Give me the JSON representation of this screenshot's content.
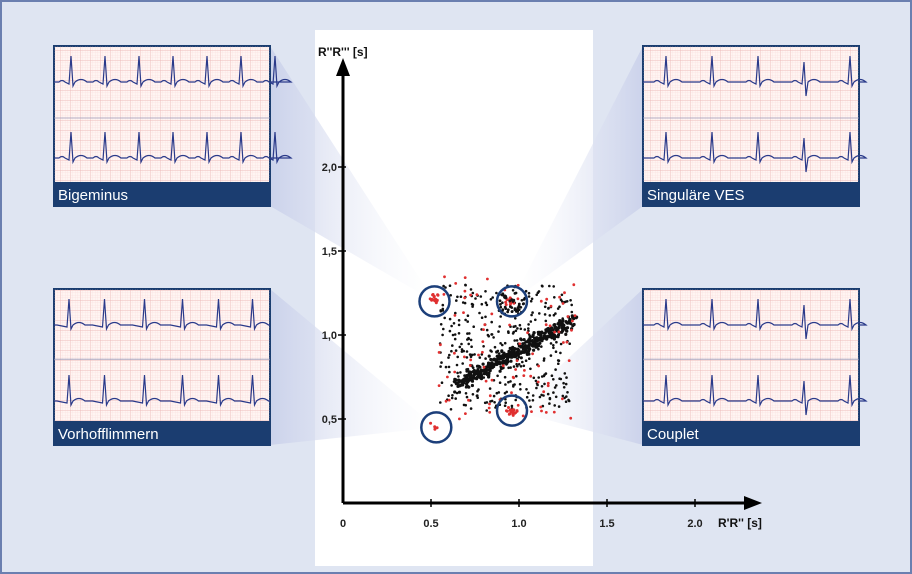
{
  "chart_data": {
    "type": "scatter",
    "xlabel": "R'R'' [s]",
    "ylabel": "R''R''' [s]",
    "xlim": [
      0,
      2.2
    ],
    "ylim": [
      0,
      2.3
    ],
    "x_ticks": [
      {
        "value": 0,
        "label": "0"
      },
      {
        "value": 0.5,
        "label": "0.5"
      },
      {
        "value": 1.0,
        "label": "1.0"
      },
      {
        "value": 1.5,
        "label": "1.5"
      },
      {
        "value": 2.0,
        "label": "2.0"
      }
    ],
    "y_ticks": [
      {
        "value": 0.5,
        "label": "0,5"
      },
      {
        "value": 1.0,
        "label": "1,0"
      },
      {
        "value": 1.5,
        "label": "1,5"
      },
      {
        "value": 2.0,
        "label": "2,0"
      }
    ],
    "grid": false,
    "colors": {
      "normal_beats": "#111111",
      "abnormal_beats": "#e03030",
      "highlight_circle": "#1c3f7a",
      "caption_bar": "#1b3d70",
      "ecg_grid": "#e4a0a0",
      "ecg_trace": "#2a3a8a"
    },
    "highlight_regions": [
      {
        "name": "Bigeminus",
        "cx": 0.52,
        "cy": 1.2,
        "target": "Bigeminus"
      },
      {
        "name": "Singuläre VES",
        "cx": 0.96,
        "cy": 1.2,
        "target": "Singuläre VES"
      },
      {
        "name": "Couplet",
        "cx": 0.96,
        "cy": 0.55,
        "target": "Couplet"
      },
      {
        "name": "Vorhofflimmern",
        "cx": 0.53,
        "cy": 0.45,
        "target": "Vorhofflimmern"
      }
    ],
    "insets": [
      {
        "caption": "Bigeminus",
        "position": "top-left"
      },
      {
        "caption": "Singuläre VES",
        "position": "top-right"
      },
      {
        "caption": "Vorhofflimmern",
        "position": "bottom-left"
      },
      {
        "caption": "Couplet",
        "position": "bottom-right"
      }
    ]
  }
}
